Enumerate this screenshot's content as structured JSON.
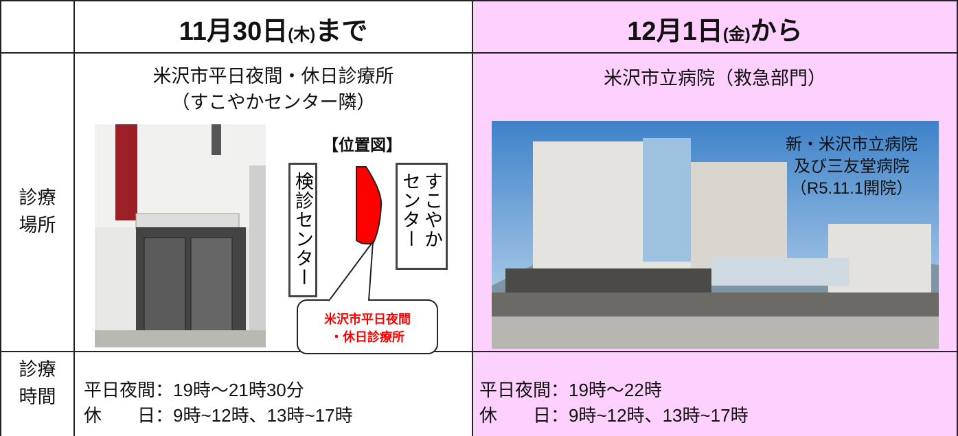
{
  "header": {
    "before": {
      "date": "11月30日",
      "weekday": "(木)",
      "suffix": "まで"
    },
    "after": {
      "date": "12月1日",
      "weekday": "(金)",
      "suffix": "から"
    }
  },
  "rows": [
    {
      "label": [
        "診療",
        "場所"
      ],
      "before": {
        "name": "米沢市平日夜間・休日診療所",
        "note": "（すこやかセンター隣）",
        "map": {
          "title": "【位置図】",
          "left_building": "検診センター",
          "right_building": [
            "すこやか",
            "センター"
          ],
          "callout": [
            "米沢市平日夜間",
            "・休日診療所"
          ]
        }
      },
      "after": {
        "name": "米沢市立病院（救急部門）",
        "image_caption": [
          "新・米沢市立病院",
          "及び三友堂病院",
          "（R5.11.1開院）"
        ]
      }
    },
    {
      "label": [
        "診療",
        "時間"
      ],
      "before": [
        "平日夜間：19時～21時30分",
        "休　　日：9時~12時、13時~17時"
      ],
      "after": [
        "平日夜間：19時～22時",
        "休　　日：9時~12時、13時~17時"
      ]
    }
  ]
}
